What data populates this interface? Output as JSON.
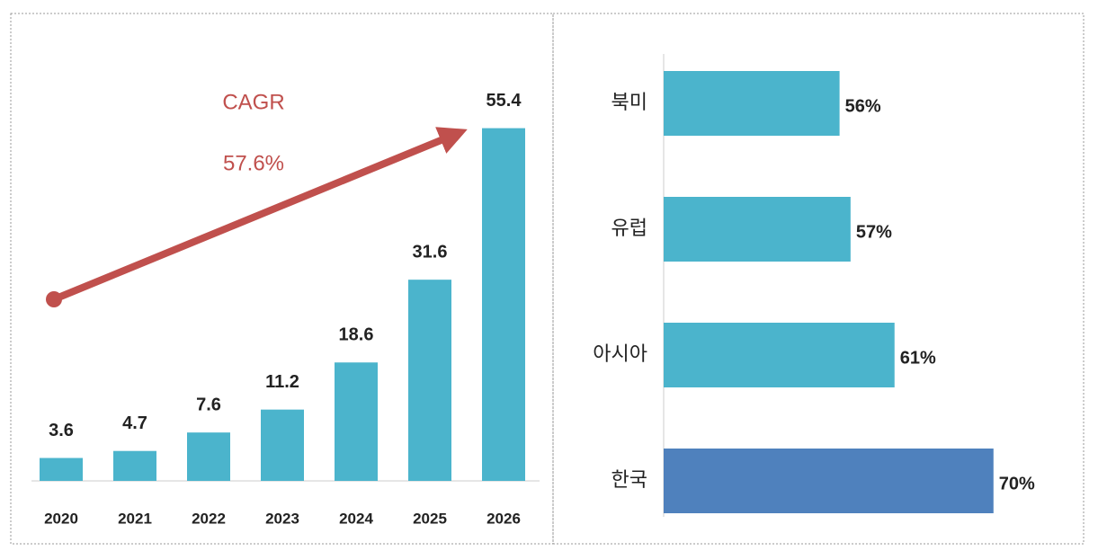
{
  "chart_data": [
    {
      "type": "bar",
      "categories": [
        "2020",
        "2021",
        "2022",
        "2023",
        "2024",
        "2025",
        "2026"
      ],
      "values": [
        3.6,
        4.7,
        7.6,
        11.2,
        18.6,
        31.6,
        55.4
      ],
      "color": "#4bb4cc",
      "ylim": [
        0,
        60
      ],
      "annotations": [
        "CAGR",
        "57.6%"
      ],
      "annotation_color": "#c0504d"
    },
    {
      "type": "hbar",
      "categories": [
        "북미",
        "유럽",
        "아시아",
        "한국"
      ],
      "values": [
        56,
        57,
        61,
        70
      ],
      "value_labels": [
        "56%",
        "57%",
        "61%",
        "70%"
      ],
      "colors": [
        "#4bb4cc",
        "#4bb4cc",
        "#4bb4cc",
        "#4f81bd"
      ],
      "label_colors": [
        "#222222",
        "#222222",
        "#222222",
        "#c0392b"
      ],
      "xlim": [
        40,
        71
      ]
    }
  ]
}
